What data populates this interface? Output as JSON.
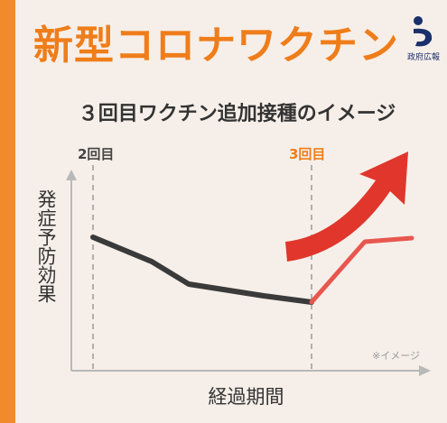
{
  "header": {
    "title": "新型コロナワクチン",
    "logo_text": "政府広報"
  },
  "infographic": {
    "subtitle": "３回目ワクチン追加接種のイメージ",
    "dose2_label": "2回目",
    "dose3_label": "3回目",
    "y_label": "発症予防効果",
    "x_label": "経過期間",
    "note": "※イメージ"
  },
  "colors": {
    "accent": "#ef7d1a",
    "line_declining": "#3a3a3a",
    "line_boost": "#e8574f",
    "arrow": "#e0362c"
  },
  "icons": [
    "government-pr-logo-icon",
    "upward-arrow-icon"
  ]
}
